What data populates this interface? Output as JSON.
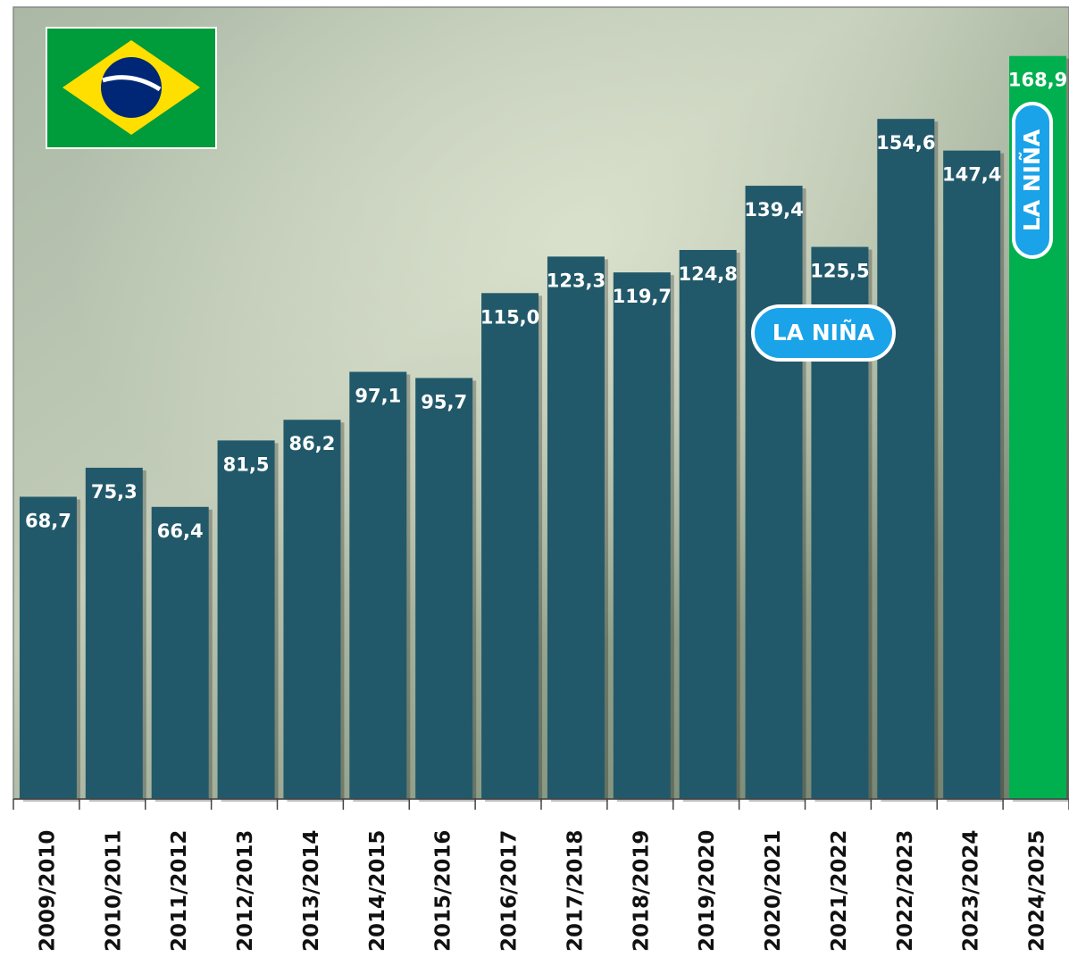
{
  "chart_data": {
    "type": "bar",
    "categories": [
      "2009/2010",
      "2010/2011",
      "2011/2012",
      "2012/2013",
      "2013/2014",
      "2014/2015",
      "2015/2016",
      "2016/2017",
      "2017/2018",
      "2018/2019",
      "2019/2020",
      "2020/2021",
      "2021/2022",
      "2022/2023",
      "2023/2024",
      "2024/2025"
    ],
    "values": [
      68.7,
      75.3,
      66.4,
      81.5,
      86.2,
      97.1,
      95.7,
      115.0,
      123.3,
      119.7,
      124.8,
      139.4,
      125.5,
      154.6,
      147.4,
      168.9
    ],
    "value_labels": [
      "68,7",
      "75,3",
      "66,4",
      "81,5",
      "86,2",
      "97,1",
      "95,7",
      "115,0",
      "123,3",
      "119,7",
      "124,8",
      "139,4",
      "125,5",
      "154,6",
      "147,4",
      "168,9"
    ],
    "colors": [
      "#22596a",
      "#22596a",
      "#22596a",
      "#22596a",
      "#22596a",
      "#22596a",
      "#22596a",
      "#22596a",
      "#22596a",
      "#22596a",
      "#22596a",
      "#22596a",
      "#22596a",
      "#22596a",
      "#22596a",
      "#00b04f"
    ],
    "ylim": [
      0,
      180
    ],
    "annotations": [
      "LA NIÑA",
      "LA NIÑA"
    ]
  }
}
